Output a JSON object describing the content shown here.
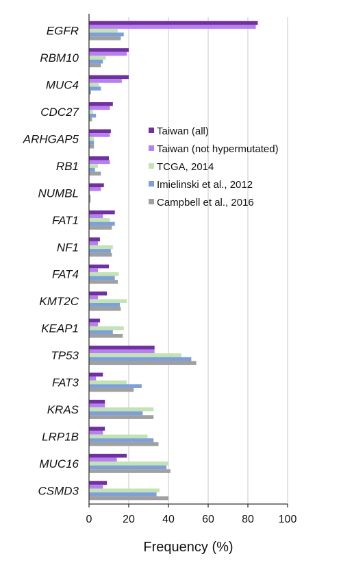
{
  "chart_data": {
    "type": "bar",
    "orientation": "horizontal",
    "xlabel": "Frequency (%)",
    "ylabel": "",
    "xlim": [
      0,
      100
    ],
    "xticks": [
      0,
      20,
      40,
      60,
      80,
      100
    ],
    "grid": "vertical",
    "legend": "right, over the upper bars",
    "categories": [
      "EGFR",
      "RBM10",
      "MUC4",
      "CDC27",
      "ARHGAP5",
      "RB1",
      "NUMBL",
      "FAT1",
      "NF1",
      "FAT4",
      "KMT2C",
      "KEAP1",
      "TP53",
      "FAT3",
      "KRAS",
      "LRP1B",
      "MUC16",
      "CSMD3"
    ],
    "series": [
      {
        "name": "Taiwan (all)",
        "color": "#7030a0",
        "values": [
          85,
          20,
          20,
          12,
          11,
          10,
          7.5,
          13,
          5.5,
          10,
          9,
          5.5,
          33,
          7,
          8,
          8,
          19,
          9
        ]
      },
      {
        "name": "Taiwan (not hypermutated)",
        "color": "#b680f0",
        "values": [
          84,
          19,
          16.5,
          10.5,
          10.5,
          10.5,
          6,
          7,
          4.5,
          4.5,
          4.5,
          4.5,
          33,
          3.5,
          8,
          7,
          14,
          7
        ]
      },
      {
        "name": "TCGA, 2014",
        "color": "#c3e3b5",
        "values": [
          14.5,
          8.5,
          5,
          2,
          2.5,
          4.5,
          0.5,
          10.5,
          12,
          15,
          19,
          17.5,
          46.5,
          19,
          32.5,
          29.5,
          40,
          35.5
        ]
      },
      {
        "name": "Imielinski et al., 2012",
        "color": "#7da0d8",
        "values": [
          17.5,
          7,
          6,
          3.5,
          2.5,
          3,
          0.8,
          13,
          11,
          13,
          15.5,
          12,
          51.5,
          26.5,
          27,
          32.5,
          39,
          34
        ]
      },
      {
        "name": "Campbell et al., 2016",
        "color": "#a0a0a0",
        "values": [
          16,
          6,
          1,
          1.5,
          2.5,
          6,
          0.8,
          11.5,
          11.5,
          14.5,
          16,
          17,
          54,
          22.5,
          32.5,
          35,
          41,
          40
        ]
      }
    ]
  }
}
